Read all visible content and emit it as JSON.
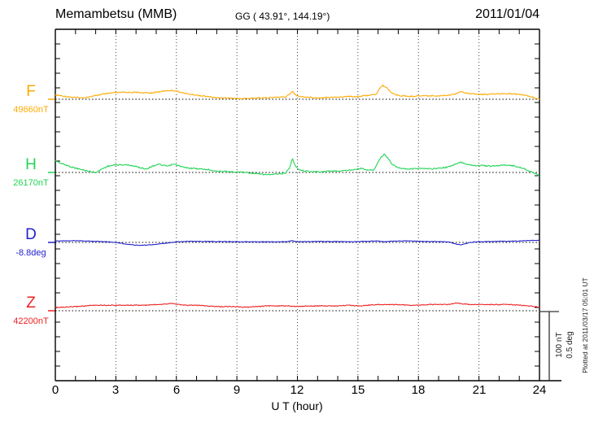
{
  "header": {
    "station": "Memambetsu (MMB)",
    "coords": "GG ( 43.91°, 144.19°)",
    "date": "2011/01/04"
  },
  "scale_bar": {
    "labels": [
      "100 nT",
      "0.5 deg"
    ]
  },
  "footer_note": "Plotted at 2011/03/17 05:01 UT",
  "chart_data": {
    "type": "line",
    "title": "Memambetsu (MMB) magnetogram, 2011/01/04",
    "x_label": "U T (hour)",
    "x_range": [
      0,
      24
    ],
    "x_ticks": [
      "0",
      "3",
      "6",
      "9",
      "12",
      "15",
      "18",
      "21",
      "24"
    ],
    "x_gridlines_hours": [
      3,
      6,
      9,
      12,
      15,
      18,
      21
    ],
    "scale": {
      "nT_per_division": 100,
      "deg_per_division": 0.5
    },
    "legend": "dotted horizontal line = baseline value for each component",
    "series": [
      {
        "name": "F",
        "unit": "nT",
        "baseline_value": 49660,
        "baseline_label": "49660nT",
        "color": "#ffaa00",
        "offsets_from_baseline": [
          [
            0,
            6
          ],
          [
            0.3,
            5
          ],
          [
            0.8,
            3
          ],
          [
            1.3,
            2
          ],
          [
            1.8,
            4
          ],
          [
            2.3,
            7
          ],
          [
            2.8,
            9
          ],
          [
            3.3,
            10
          ],
          [
            4,
            10
          ],
          [
            4.6,
            9
          ],
          [
            5,
            10
          ],
          [
            5.4,
            12
          ],
          [
            5.8,
            13
          ],
          [
            6.1,
            11
          ],
          [
            6.5,
            8
          ],
          [
            7,
            6
          ],
          [
            7.5,
            4
          ],
          [
            8,
            2
          ],
          [
            8.5,
            2
          ],
          [
            9,
            1
          ],
          [
            9.5,
            1
          ],
          [
            10,
            2
          ],
          [
            10.5,
            2
          ],
          [
            11,
            3
          ],
          [
            11.4,
            3
          ],
          [
            11.6,
            7
          ],
          [
            11.75,
            12
          ],
          [
            11.9,
            6
          ],
          [
            12.1,
            4
          ],
          [
            12.5,
            3
          ],
          [
            13,
            2
          ],
          [
            13.5,
            3
          ],
          [
            14,
            3
          ],
          [
            14.5,
            4
          ],
          [
            15,
            4
          ],
          [
            15.3,
            5
          ],
          [
            15.6,
            6
          ],
          [
            15.9,
            7
          ],
          [
            16.1,
            17
          ],
          [
            16.25,
            20
          ],
          [
            16.45,
            16
          ],
          [
            16.65,
            10
          ],
          [
            16.9,
            6
          ],
          [
            17.2,
            5
          ],
          [
            17.5,
            4
          ],
          [
            18,
            5
          ],
          [
            18.5,
            5
          ],
          [
            19,
            5
          ],
          [
            19.5,
            6
          ],
          [
            19.85,
            8
          ],
          [
            20.05,
            11
          ],
          [
            20.25,
            10
          ],
          [
            20.6,
            8
          ],
          [
            21,
            7
          ],
          [
            21.5,
            7
          ],
          [
            22,
            8
          ],
          [
            22.5,
            8
          ],
          [
            23,
            7
          ],
          [
            23.4,
            5
          ],
          [
            23.7,
            3
          ],
          [
            24,
            0
          ]
        ]
      },
      {
        "name": "H",
        "unit": "nT",
        "baseline_value": 26170,
        "baseline_label": "26170nT",
        "color": "#22d455",
        "offsets_from_baseline": [
          [
            0,
            17
          ],
          [
            0.3,
            13
          ],
          [
            0.8,
            8
          ],
          [
            1.3,
            4
          ],
          [
            1.8,
            1
          ],
          [
            2.05,
            0
          ],
          [
            2.3,
            5
          ],
          [
            2.6,
            9
          ],
          [
            3,
            11
          ],
          [
            3.5,
            11
          ],
          [
            3.8,
            10
          ],
          [
            4.2,
            7
          ],
          [
            4.5,
            5
          ],
          [
            4.8,
            9
          ],
          [
            5.1,
            12
          ],
          [
            5.35,
            10
          ],
          [
            5.6,
            9
          ],
          [
            5.85,
            12
          ],
          [
            6.1,
            10
          ],
          [
            6.4,
            7
          ],
          [
            6.8,
            6
          ],
          [
            7.2,
            5
          ],
          [
            7.6,
            4
          ],
          [
            8,
            2
          ],
          [
            8.5,
            1
          ],
          [
            9,
            1
          ],
          [
            9.5,
            0
          ],
          [
            10,
            -2
          ],
          [
            10.4,
            -3
          ],
          [
            10.8,
            -3
          ],
          [
            11.1,
            -2
          ],
          [
            11.4,
            -1
          ],
          [
            11.6,
            6
          ],
          [
            11.75,
            20
          ],
          [
            11.9,
            9
          ],
          [
            12.1,
            4
          ],
          [
            12.4,
            2
          ],
          [
            12.8,
            1
          ],
          [
            13.2,
            1
          ],
          [
            13.6,
            2
          ],
          [
            14,
            2
          ],
          [
            14.5,
            3
          ],
          [
            14.9,
            5
          ],
          [
            15.2,
            6
          ],
          [
            15.5,
            3
          ],
          [
            15.8,
            4
          ],
          [
            16.05,
            18
          ],
          [
            16.3,
            27
          ],
          [
            16.5,
            20
          ],
          [
            16.7,
            12
          ],
          [
            16.9,
            8
          ],
          [
            17.2,
            6
          ],
          [
            17.5,
            5
          ],
          [
            18,
            6
          ],
          [
            18.5,
            5
          ],
          [
            19,
            6
          ],
          [
            19.5,
            8
          ],
          [
            19.85,
            12
          ],
          [
            20.1,
            15
          ],
          [
            20.4,
            12
          ],
          [
            20.8,
            10
          ],
          [
            21.2,
            10
          ],
          [
            21.6,
            9
          ],
          [
            22,
            10
          ],
          [
            22.4,
            11
          ],
          [
            22.8,
            9
          ],
          [
            23.2,
            6
          ],
          [
            23.5,
            2
          ],
          [
            23.8,
            -2
          ],
          [
            24,
            -5
          ]
        ]
      },
      {
        "name": "D",
        "unit": "deg",
        "baseline_value": -8.8,
        "baseline_label": "-8.8deg",
        "color": "#2222cc",
        "offsets_from_baseline": [
          [
            0,
            0.01
          ],
          [
            0.5,
            0.012
          ],
          [
            1,
            0.012
          ],
          [
            1.5,
            0.01
          ],
          [
            2,
            0.008
          ],
          [
            2.5,
            0.006
          ],
          [
            3,
            0.0
          ],
          [
            3.5,
            -0.012
          ],
          [
            4,
            -0.02
          ],
          [
            4.5,
            -0.02
          ],
          [
            5,
            -0.014
          ],
          [
            5.5,
            -0.006
          ],
          [
            6,
            0.004
          ],
          [
            6.5,
            0.008
          ],
          [
            7,
            0.008
          ],
          [
            7.5,
            0.007
          ],
          [
            8,
            0.006
          ],
          [
            8.5,
            0.006
          ],
          [
            9,
            0.005
          ],
          [
            9.5,
            0.005
          ],
          [
            10,
            0.004
          ],
          [
            10.5,
            0.004
          ],
          [
            11,
            0.005
          ],
          [
            11.5,
            0.005
          ],
          [
            11.7,
            0.014
          ],
          [
            11.9,
            0.007
          ],
          [
            12.2,
            0.006
          ],
          [
            12.6,
            0.006
          ],
          [
            13,
            0.007
          ],
          [
            13.5,
            0.006
          ],
          [
            14,
            0.006
          ],
          [
            14.5,
            0.006
          ],
          [
            15,
            0.005
          ],
          [
            15.5,
            0.008
          ],
          [
            16,
            0.01
          ],
          [
            16.3,
            0.005
          ],
          [
            16.6,
            0.008
          ],
          [
            17,
            0.01
          ],
          [
            17.5,
            0.011
          ],
          [
            18,
            0.008
          ],
          [
            18.5,
            0.006
          ],
          [
            19,
            0.006
          ],
          [
            19.5,
            0.004
          ],
          [
            19.9,
            -0.014
          ],
          [
            20.15,
            -0.016
          ],
          [
            20.45,
            -0.004
          ],
          [
            20.7,
            0.002
          ],
          [
            21,
            0.004
          ],
          [
            21.5,
            0.006
          ],
          [
            22,
            0.008
          ],
          [
            22.5,
            0.008
          ],
          [
            23,
            0.01
          ],
          [
            23.5,
            0.014
          ],
          [
            24,
            0.015
          ]
        ]
      },
      {
        "name": "Z",
        "unit": "nT",
        "baseline_value": 42200,
        "baseline_label": "42200nT",
        "color": "#ee2222",
        "offsets_from_baseline": [
          [
            0,
            5
          ],
          [
            0.5,
            5
          ],
          [
            1,
            6
          ],
          [
            1.5,
            7
          ],
          [
            2,
            8
          ],
          [
            2.5,
            8
          ],
          [
            3,
            8
          ],
          [
            3.5,
            8
          ],
          [
            4,
            8
          ],
          [
            4.5,
            8
          ],
          [
            5,
            9
          ],
          [
            5.5,
            10
          ],
          [
            5.8,
            11
          ],
          [
            6.1,
            9
          ],
          [
            6.5,
            8
          ],
          [
            7,
            8
          ],
          [
            7.5,
            7
          ],
          [
            8,
            6
          ],
          [
            8.5,
            6
          ],
          [
            9,
            6
          ],
          [
            9.5,
            5
          ],
          [
            10,
            6
          ],
          [
            10.5,
            7
          ],
          [
            11,
            7
          ],
          [
            11.5,
            7
          ],
          [
            12,
            6
          ],
          [
            12.5,
            7
          ],
          [
            13,
            7
          ],
          [
            13.5,
            7
          ],
          [
            14,
            7
          ],
          [
            14.5,
            8
          ],
          [
            15,
            7
          ],
          [
            15.5,
            8
          ],
          [
            16,
            9
          ],
          [
            16.5,
            9
          ],
          [
            17,
            9
          ],
          [
            17.5,
            8
          ],
          [
            18,
            8
          ],
          [
            18.5,
            9
          ],
          [
            19,
            9
          ],
          [
            19.5,
            9
          ],
          [
            19.9,
            11
          ],
          [
            20.2,
            10
          ],
          [
            20.6,
            9
          ],
          [
            21,
            9
          ],
          [
            21.5,
            9
          ],
          [
            22,
            9
          ],
          [
            22.5,
            9
          ],
          [
            23,
            8
          ],
          [
            23.5,
            7
          ],
          [
            24,
            5
          ]
        ]
      }
    ]
  }
}
